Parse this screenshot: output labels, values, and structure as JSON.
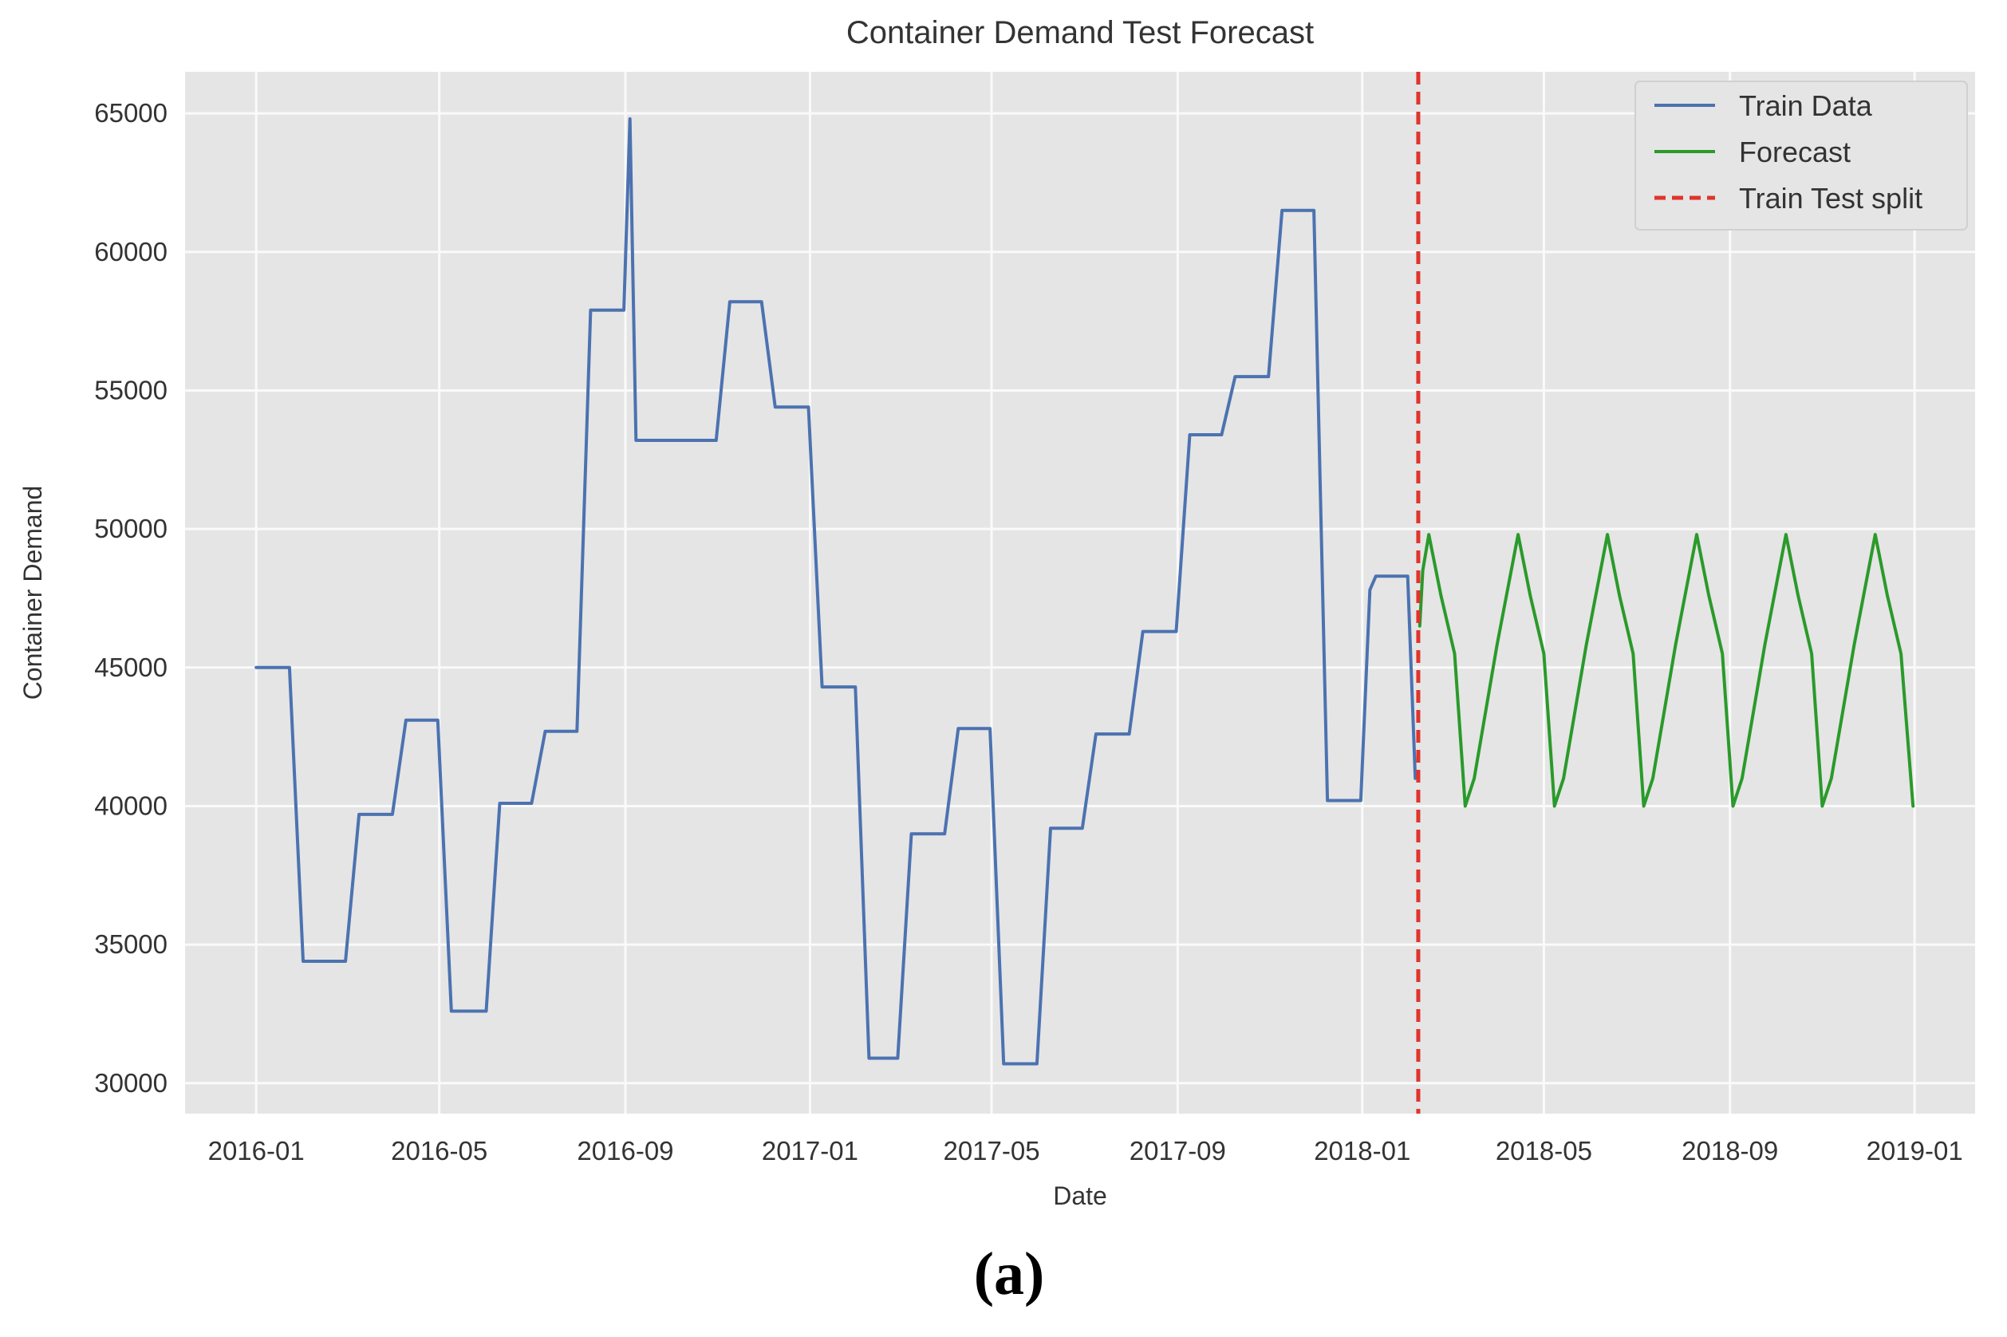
{
  "chart_data": {
    "type": "line",
    "title": "Container Demand Test Forecast",
    "xlabel": "Date",
    "ylabel": "Container Demand",
    "caption": "(a)",
    "x_range": [
      "2015-11-15",
      "2019-02-10"
    ],
    "ylim": [
      28900,
      66500
    ],
    "grid": true,
    "legend_position": "top-right",
    "x_ticks": [
      {
        "date": "2016-01-01",
        "label": "2016-01"
      },
      {
        "date": "2016-05-01",
        "label": "2016-05"
      },
      {
        "date": "2016-09-01",
        "label": "2016-09"
      },
      {
        "date": "2017-01-01",
        "label": "2017-01"
      },
      {
        "date": "2017-05-01",
        "label": "2017-05"
      },
      {
        "date": "2017-09-01",
        "label": "2017-09"
      },
      {
        "date": "2018-01-01",
        "label": "2018-01"
      },
      {
        "date": "2018-05-01",
        "label": "2018-05"
      },
      {
        "date": "2018-09-01",
        "label": "2018-09"
      },
      {
        "date": "2019-01-01",
        "label": "2019-01"
      }
    ],
    "y_ticks": [
      {
        "value": 30000,
        "label": "30000"
      },
      {
        "value": 35000,
        "label": "35000"
      },
      {
        "value": 40000,
        "label": "40000"
      },
      {
        "value": 45000,
        "label": "45000"
      },
      {
        "value": 50000,
        "label": "50000"
      },
      {
        "value": 55000,
        "label": "55000"
      },
      {
        "value": 60000,
        "label": "60000"
      },
      {
        "value": 65000,
        "label": "65000"
      }
    ],
    "series": [
      {
        "name": "Train Data",
        "color": "#4c72b0",
        "style": "solid",
        "points": [
          [
            "2016-01-01",
            45000
          ],
          [
            "2016-01-23",
            45000
          ],
          [
            "2016-02-01",
            34400
          ],
          [
            "2016-02-29",
            34400
          ],
          [
            "2016-03-09",
            39700
          ],
          [
            "2016-03-31",
            39700
          ],
          [
            "2016-04-09",
            43100
          ],
          [
            "2016-04-30",
            43100
          ],
          [
            "2016-05-09",
            32600
          ],
          [
            "2016-06-01",
            32600
          ],
          [
            "2016-06-10",
            40100
          ],
          [
            "2016-07-01",
            40100
          ],
          [
            "2016-07-10",
            42700
          ],
          [
            "2016-07-31",
            42700
          ],
          [
            "2016-08-09",
            57900
          ],
          [
            "2016-08-31",
            57900
          ],
          [
            "2016-09-04",
            64800
          ],
          [
            "2016-09-08",
            53200
          ],
          [
            "2016-10-31",
            53200
          ],
          [
            "2016-11-09",
            58200
          ],
          [
            "2016-11-30",
            58200
          ],
          [
            "2016-12-09",
            54400
          ],
          [
            "2016-12-31",
            54400
          ],
          [
            "2017-01-09",
            44300
          ],
          [
            "2017-01-31",
            44300
          ],
          [
            "2017-02-09",
            30900
          ],
          [
            "2017-02-28",
            30900
          ],
          [
            "2017-03-09",
            39000
          ],
          [
            "2017-03-31",
            39000
          ],
          [
            "2017-04-09",
            42800
          ],
          [
            "2017-04-30",
            42800
          ],
          [
            "2017-05-09",
            30700
          ],
          [
            "2017-05-31",
            30700
          ],
          [
            "2017-06-09",
            39200
          ],
          [
            "2017-06-30",
            39200
          ],
          [
            "2017-07-09",
            42600
          ],
          [
            "2017-07-31",
            42600
          ],
          [
            "2017-08-09",
            46300
          ],
          [
            "2017-08-31",
            46300
          ],
          [
            "2017-09-09",
            53400
          ],
          [
            "2017-09-30",
            53400
          ],
          [
            "2017-10-09",
            55500
          ],
          [
            "2017-10-31",
            55500
          ],
          [
            "2017-11-09",
            61500
          ],
          [
            "2017-11-30",
            61500
          ],
          [
            "2017-12-09",
            40200
          ],
          [
            "2017-12-31",
            40200
          ],
          [
            "2018-01-06",
            47800
          ],
          [
            "2018-01-10",
            48300
          ],
          [
            "2018-01-31",
            48300
          ],
          [
            "2018-02-05",
            41000
          ]
        ]
      },
      {
        "name": "Forecast",
        "color": "#2a9a2a",
        "style": "solid",
        "points": [
          [
            "2018-02-08",
            46500
          ],
          [
            "2018-02-10",
            48500
          ],
          [
            "2018-02-14",
            49800
          ],
          [
            "2018-02-22",
            47600
          ],
          [
            "2018-03-03",
            45500
          ],
          [
            "2018-03-10",
            40000
          ],
          [
            "2018-03-16",
            41000
          ],
          [
            "2018-03-31",
            45800
          ],
          [
            "2018-04-14",
            49800
          ],
          [
            "2018-04-22",
            47600
          ],
          [
            "2018-05-01",
            45500
          ],
          [
            "2018-05-08",
            40000
          ],
          [
            "2018-05-14",
            41000
          ],
          [
            "2018-05-29",
            45800
          ],
          [
            "2018-06-12",
            49800
          ],
          [
            "2018-06-20",
            47600
          ],
          [
            "2018-06-29",
            45500
          ],
          [
            "2018-07-06",
            40000
          ],
          [
            "2018-07-12",
            41000
          ],
          [
            "2018-07-27",
            45800
          ],
          [
            "2018-08-10",
            49800
          ],
          [
            "2018-08-18",
            47600
          ],
          [
            "2018-08-27",
            45500
          ],
          [
            "2018-09-03",
            40000
          ],
          [
            "2018-09-09",
            41000
          ],
          [
            "2018-09-24",
            45800
          ],
          [
            "2018-10-08",
            49800
          ],
          [
            "2018-10-16",
            47600
          ],
          [
            "2018-10-25",
            45500
          ],
          [
            "2018-11-01",
            40000
          ],
          [
            "2018-11-07",
            41000
          ],
          [
            "2018-11-22",
            45800
          ],
          [
            "2018-12-06",
            49800
          ],
          [
            "2018-12-14",
            47600
          ],
          [
            "2018-12-23",
            45500
          ],
          [
            "2018-12-31",
            40000
          ]
        ]
      }
    ],
    "vlines": [
      {
        "name": "Train Test split",
        "date": "2018-02-07",
        "color": "#e0342c",
        "style": "dashed"
      }
    ],
    "legend": [
      {
        "label": "Train Data",
        "color": "#4c72b0",
        "style": "solid"
      },
      {
        "label": "Forecast",
        "color": "#2a9a2a",
        "style": "solid"
      },
      {
        "label": "Train Test split",
        "color": "#e0342c",
        "style": "dashed"
      }
    ],
    "colors": {
      "plot_background": "#e5e5e5",
      "grid": "#fafafa",
      "text": "#333333"
    }
  }
}
